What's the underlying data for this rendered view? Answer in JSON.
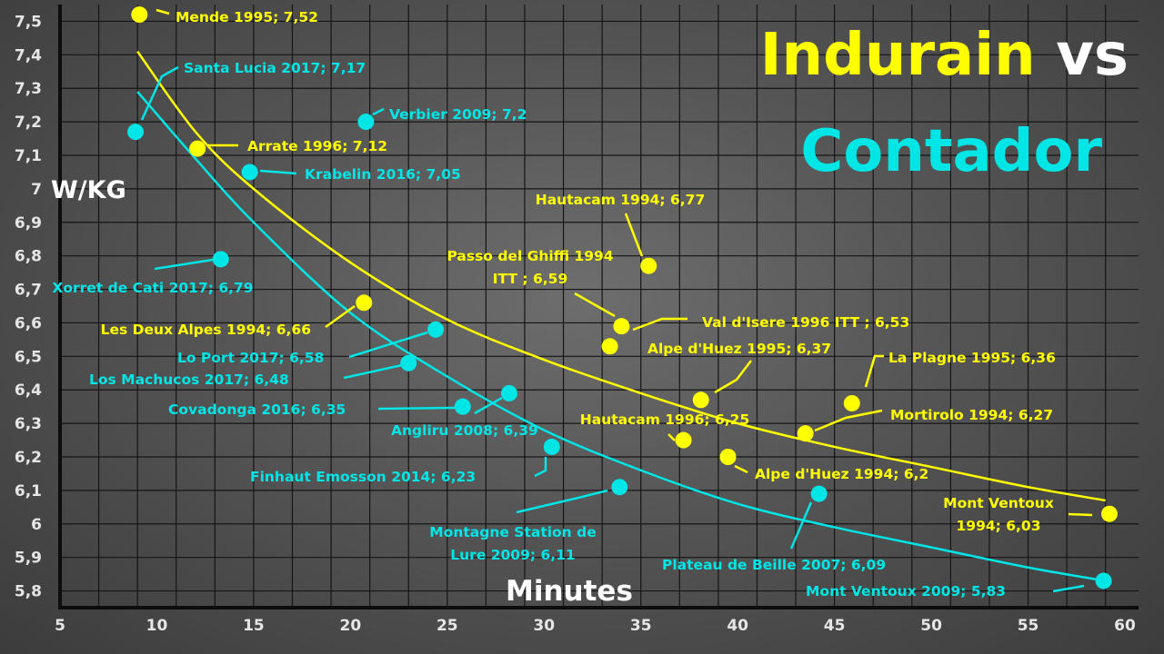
{
  "chart_data": {
    "type": "scatter",
    "title": {
      "part1": "Indurain",
      "part2": "vs",
      "part3": "Contador"
    },
    "xlabel": "Minutes",
    "ylabel": "W/KG",
    "xlim": [
      5,
      60
    ],
    "ylim": [
      5.75,
      7.55
    ],
    "x_ticks": [
      "5",
      "10",
      "15",
      "20",
      "25",
      "30",
      "35",
      "40",
      "45",
      "50",
      "55",
      "60"
    ],
    "y_ticks": [
      "5,8",
      "5,9",
      "6",
      "6,1",
      "6,2",
      "6,3",
      "6,4",
      "6,5",
      "6,6",
      "6,7",
      "6,8",
      "6,9",
      "7",
      "7,1",
      "7,2",
      "7,3",
      "7,4",
      "7,5"
    ],
    "grid": true,
    "colors": {
      "Indurain": "#ffff00",
      "Contador": "#00e5e5"
    },
    "series": [
      {
        "name": "Indurain",
        "color": "#ffff00",
        "points": [
          {
            "x": 9.1,
            "y": 7.52,
            "label": "Mende 1995; 7,52"
          },
          {
            "x": 12.1,
            "y": 7.12,
            "label": "Arrate 1996; 7,12"
          },
          {
            "x": 35.4,
            "y": 6.77,
            "label": "Hautacam 1994; 6,77"
          },
          {
            "x": 20.7,
            "y": 6.66,
            "label": "Les Deux Alpes 1994; 6,66"
          },
          {
            "x": 34.0,
            "y": 6.59,
            "label_lines": [
              "Passo del Ghiffi 1994",
              "ITT ; 6,59"
            ]
          },
          {
            "x": 33.4,
            "y": 6.53,
            "label": "Val d'Isere 1996 ITT ; 6,53"
          },
          {
            "x": 38.1,
            "y": 6.37,
            "label": "Alpe d'Huez 1995; 6,37"
          },
          {
            "x": 45.9,
            "y": 6.36,
            "label": "La Plagne 1995; 6,36"
          },
          {
            "x": 43.5,
            "y": 6.27,
            "label": "Mortirolo 1994; 6,27"
          },
          {
            "x": 37.2,
            "y": 6.25,
            "label": "Hautacam 1996; 6,25"
          },
          {
            "x": 39.5,
            "y": 6.2,
            "label": "Alpe d'Huez 1994; 6,2"
          },
          {
            "x": 59.2,
            "y": 6.03,
            "label_lines": [
              "Mont Ventoux",
              "1994; 6,03"
            ]
          }
        ],
        "trend": [
          [
            9,
            7.41
          ],
          [
            12,
            7.17
          ],
          [
            15,
            7.0
          ],
          [
            20,
            6.78
          ],
          [
            25,
            6.61
          ],
          [
            30,
            6.49
          ],
          [
            35,
            6.39
          ],
          [
            40,
            6.3
          ],
          [
            45,
            6.23
          ],
          [
            50,
            6.17
          ],
          [
            55,
            6.11
          ],
          [
            59,
            6.07
          ]
        ]
      },
      {
        "name": "Contador",
        "color": "#00e5e5",
        "points": [
          {
            "x": 8.9,
            "y": 7.17,
            "label": "Santa Lucia 2017; 7,17"
          },
          {
            "x": 20.8,
            "y": 7.2,
            "label": "Verbier 2009; 7,2"
          },
          {
            "x": 14.8,
            "y": 7.05,
            "label": "Krabelin 2016; 7,05"
          },
          {
            "x": 13.3,
            "y": 6.79,
            "label": "Xorret de Cati 2017; 6,79"
          },
          {
            "x": 24.4,
            "y": 6.58,
            "label": "Lo Port 2017; 6,58"
          },
          {
            "x": 23.0,
            "y": 6.48,
            "label": "Los Machucos 2017; 6,48"
          },
          {
            "x": 28.2,
            "y": 6.39,
            "label": "Angliru 2008; 6,39"
          },
          {
            "x": 25.8,
            "y": 6.35,
            "label": "Covadonga 2016; 6,35"
          },
          {
            "x": 30.4,
            "y": 6.23,
            "label": "Finhaut Emosson 2014; 6,23"
          },
          {
            "x": 33.9,
            "y": 6.11,
            "label_lines": [
              "Montagne Station de",
              "Lure 2009; 6,11"
            ]
          },
          {
            "x": 44.2,
            "y": 6.09,
            "label": "Plateau de Beille 2007; 6,09"
          },
          {
            "x": 58.9,
            "y": 5.83,
            "label": "Mont Ventoux 2009; 5,83"
          }
        ],
        "trend": [
          [
            9,
            7.29
          ],
          [
            12,
            7.09
          ],
          [
            15,
            6.9
          ],
          [
            20,
            6.63
          ],
          [
            25,
            6.44
          ],
          [
            30,
            6.28
          ],
          [
            35,
            6.16
          ],
          [
            40,
            6.06
          ],
          [
            45,
            5.99
          ],
          [
            50,
            5.93
          ],
          [
            55,
            5.87
          ],
          [
            59,
            5.83
          ]
        ]
      }
    ]
  }
}
